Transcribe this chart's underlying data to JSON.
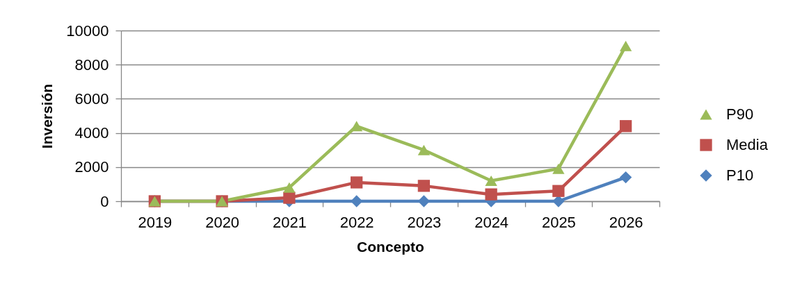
{
  "chart_data": {
    "type": "line",
    "xlabel": "Concepto",
    "ylabel": "Inversión",
    "categories": [
      "2019",
      "2020",
      "2021",
      "2022",
      "2023",
      "2024",
      "2025",
      "2026"
    ],
    "series": [
      {
        "name": "P90",
        "color": "#9bbb59",
        "marker": "triangle",
        "values": [
          0,
          0,
          800,
          4400,
          3000,
          1200,
          1900,
          9100
        ]
      },
      {
        "name": "Media",
        "color": "#c0504d",
        "marker": "square",
        "values": [
          0,
          0,
          200,
          1100,
          900,
          400,
          600,
          4400
        ]
      },
      {
        "name": "P10",
        "color": "#4f81bd",
        "marker": "diamond",
        "values": [
          0,
          0,
          0,
          0,
          0,
          0,
          0,
          1400
        ]
      }
    ],
    "ylim": [
      0,
      10000
    ],
    "yticks": [
      0,
      2000,
      4000,
      6000,
      8000,
      10000
    ],
    "grid": "y",
    "legend": "right"
  }
}
